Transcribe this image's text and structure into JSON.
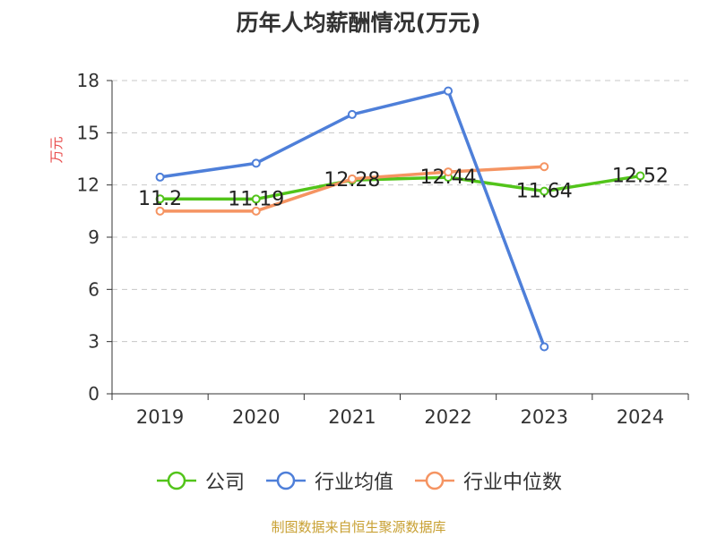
{
  "title": "历年人均薪酬情况(万元)",
  "source": "制图数据来自恒生聚源数据库",
  "chart_data": {
    "type": "line",
    "title": "历年人均薪酬情况(万元)",
    "ylabel": "万元",
    "xlabel": "",
    "categories": [
      "2019",
      "2020",
      "2021",
      "2022",
      "2023",
      "2024"
    ],
    "ylim": [
      0,
      18
    ],
    "yticks": [
      0,
      3,
      6,
      9,
      12,
      15,
      18
    ],
    "grid": true,
    "legend_position": "bottom",
    "series": [
      {
        "name": "公司",
        "color": "#52c41a",
        "values": [
          11.2,
          11.19,
          12.28,
          12.44,
          11.64,
          12.52
        ],
        "labels": [
          "11.2",
          "11.19",
          "12.28",
          "12.44",
          "11.64",
          "12.52"
        ]
      },
      {
        "name": "行业均值",
        "color": "#4e7fd9",
        "values": [
          12.45,
          13.25,
          16.05,
          17.4,
          2.7,
          null
        ]
      },
      {
        "name": "行业中位数",
        "color": "#f59462",
        "values": [
          10.5,
          10.5,
          12.35,
          12.75,
          13.05,
          null
        ]
      }
    ]
  }
}
